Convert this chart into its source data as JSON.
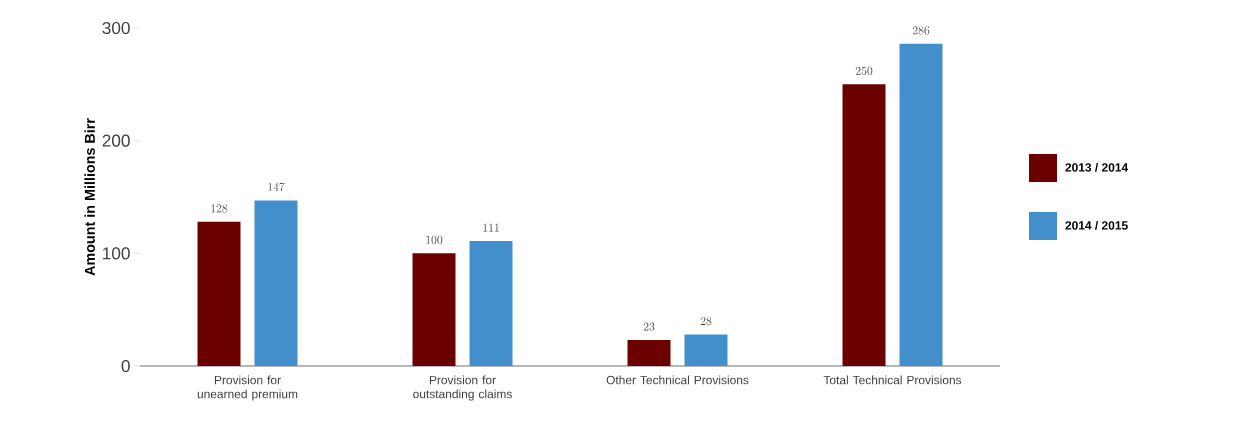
{
  "chart_data": {
    "type": "bar",
    "ylabel": "Amount in Millions Birr",
    "categories": [
      "Provision for unearned premium",
      "Provision for outstanding claims",
      "Other Technical Provisions",
      "Total Technical Provisions"
    ],
    "series": [
      {
        "name": "2013 / 2014",
        "color": "#6b0000",
        "values": [
          128,
          100,
          23,
          250
        ]
      },
      {
        "name": "2014 / 2015",
        "color": "#428fcc",
        "values": [
          147,
          111,
          28,
          286
        ]
      }
    ],
    "ylim": [
      0,
      300
    ],
    "yticks": [
      0,
      100,
      200,
      300
    ],
    "data_labels": true,
    "legend": "right",
    "grid": false
  }
}
